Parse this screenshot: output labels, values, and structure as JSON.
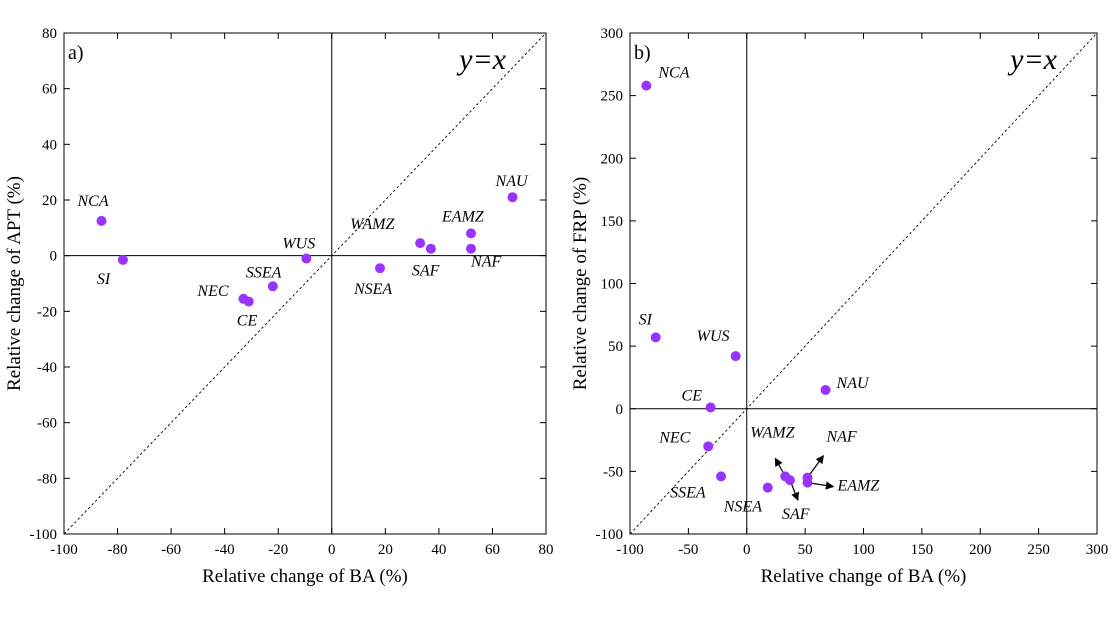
{
  "chart_data": [
    {
      "type": "scatter",
      "panel_label": "a)",
      "equation_label": "y=x",
      "xlabel": "Relative change of BA (%)",
      "ylabel": "Relative change of APT (%)",
      "xlim": [
        -100,
        80
      ],
      "ylim": [
        -100,
        80
      ],
      "xticks": [
        -100,
        -80,
        -60,
        -40,
        -20,
        0,
        20,
        40,
        60,
        80
      ],
      "yticks": [
        -100,
        -80,
        -60,
        -40,
        -20,
        0,
        20,
        40,
        60,
        80
      ],
      "grid": false,
      "reference_lines": [
        "x=0",
        "y=0",
        "y=x (dashed)"
      ],
      "marker_color": "#9933ff",
      "points": [
        {
          "label": "NCA",
          "x": -86,
          "y": 12.5
        },
        {
          "label": "SI",
          "x": -78,
          "y": -1.5
        },
        {
          "label": "NEC",
          "x": -33,
          "y": -15.5
        },
        {
          "label": "CE",
          "x": -31,
          "y": -16.5
        },
        {
          "label": "SSEA",
          "x": -22,
          "y": -11
        },
        {
          "label": "WUS",
          "x": -9.5,
          "y": -1
        },
        {
          "label": "NSEA",
          "x": 18,
          "y": -4.5
        },
        {
          "label": "WAMZ",
          "x": 33,
          "y": 4.5
        },
        {
          "label": "SAF",
          "x": 37,
          "y": 2.5
        },
        {
          "label": "EAMZ",
          "x": 52,
          "y": 8
        },
        {
          "label": "NAF",
          "x": 52,
          "y": 2.5
        },
        {
          "label": "NAU",
          "x": 67.5,
          "y": 21
        }
      ]
    },
    {
      "type": "scatter",
      "panel_label": "b)",
      "equation_label": "y=x",
      "xlabel": "Relative change of BA (%)",
      "ylabel": "Relative change of FRP (%)",
      "xlim": [
        -100,
        300
      ],
      "ylim": [
        -100,
        300
      ],
      "xticks": [
        -100,
        -50,
        0,
        50,
        100,
        150,
        200,
        250,
        300
      ],
      "yticks": [
        -100,
        -50,
        0,
        50,
        100,
        150,
        200,
        250,
        300
      ],
      "grid": false,
      "reference_lines": [
        "x=0",
        "y=0",
        "y=x (dashed)"
      ],
      "marker_color": "#9933ff",
      "points": [
        {
          "label": "NCA",
          "x": -86,
          "y": 258
        },
        {
          "label": "SI",
          "x": -78,
          "y": 57
        },
        {
          "label": "WUS",
          "x": -9.5,
          "y": 42
        },
        {
          "label": "CE",
          "x": -31,
          "y": 1
        },
        {
          "label": "NEC",
          "x": -33,
          "y": -30
        },
        {
          "label": "SSEA",
          "x": -22,
          "y": -54
        },
        {
          "label": "NSEA",
          "x": 18,
          "y": -63
        },
        {
          "label": "WAMZ",
          "x": 33,
          "y": -54
        },
        {
          "label": "SAF",
          "x": 37,
          "y": -57
        },
        {
          "label": "NAF",
          "x": 52,
          "y": -55
        },
        {
          "label": "EAMZ",
          "x": 52,
          "y": -59
        },
        {
          "label": "NAU",
          "x": 67.5,
          "y": 15
        }
      ]
    }
  ]
}
